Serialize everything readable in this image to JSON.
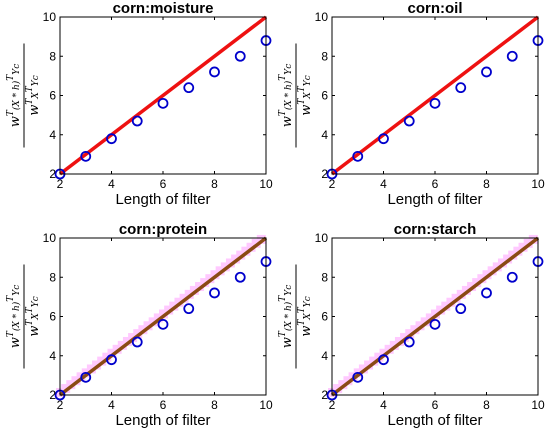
{
  "colors": {
    "marker": "#0000cc",
    "diagonal_red": "#ee1111",
    "diagonal_brown": "#8a4a14",
    "band_pink": "#ff88ff"
  },
  "ylabel_parts": {
    "numerator_lead": "w",
    "numerator_sup1": "T",
    "numerator_mid": "(X * h)",
    "numerator_sup2": "T",
    "numerator_tail": "Yc",
    "denominator_lead": "w",
    "denominator_sup1": "T",
    "denominator_mid": "X",
    "denominator_sup2": "T",
    "denominator_tail": "Yc"
  },
  "chart_data": [
    {
      "type": "scatter",
      "title": "corn:moisture",
      "xlabel": "Length of filter",
      "ylabel": "w^T(X*h)^T Yc / w^T X^T Yc",
      "xlim": [
        2,
        10
      ],
      "ylim": [
        2,
        10
      ],
      "x_ticks": [
        "2",
        "4",
        "6",
        "8",
        "10"
      ],
      "y_ticks": [
        "2",
        "4",
        "6",
        "8",
        "10"
      ],
      "grid": false,
      "diagonal": {
        "from": [
          2,
          2
        ],
        "to": [
          10,
          10
        ],
        "color": "red",
        "band": false
      },
      "x": [
        2,
        3,
        4,
        5,
        6,
        7,
        8,
        9,
        10
      ],
      "y": [
        2.0,
        2.9,
        3.8,
        4.7,
        5.6,
        6.4,
        7.2,
        8.0,
        8.8
      ]
    },
    {
      "type": "scatter",
      "title": "corn:oil",
      "xlabel": "Length of filter",
      "ylabel": "w^T(X*h)^T Yc / w^T X^T Yc",
      "xlim": [
        2,
        10
      ],
      "ylim": [
        2,
        10
      ],
      "x_ticks": [
        "2",
        "4",
        "6",
        "8",
        "10"
      ],
      "y_ticks": [
        "2",
        "4",
        "6",
        "8",
        "10"
      ],
      "grid": false,
      "diagonal": {
        "from": [
          2,
          2
        ],
        "to": [
          10,
          10
        ],
        "color": "red",
        "band": false
      },
      "x": [
        2,
        3,
        4,
        5,
        6,
        7,
        8,
        9,
        10
      ],
      "y": [
        2.0,
        2.9,
        3.8,
        4.7,
        5.6,
        6.4,
        7.2,
        8.0,
        8.8
      ]
    },
    {
      "type": "scatter",
      "title": "corn:protein",
      "xlabel": "Length of filter",
      "ylabel": "w^T(X*h)^T Yc / w^T X^T Yc",
      "xlim": [
        2,
        10
      ],
      "ylim": [
        2,
        10
      ],
      "x_ticks": [
        "2",
        "4",
        "6",
        "8",
        "10"
      ],
      "y_ticks": [
        "2",
        "4",
        "6",
        "8",
        "10"
      ],
      "grid": false,
      "diagonal": {
        "from": [
          2,
          2
        ],
        "to": [
          10,
          10
        ],
        "color": "brown",
        "band": true
      },
      "x": [
        2,
        3,
        4,
        5,
        6,
        7,
        8,
        9,
        10
      ],
      "y": [
        2.0,
        2.9,
        3.8,
        4.7,
        5.6,
        6.4,
        7.2,
        8.0,
        8.8
      ]
    },
    {
      "type": "scatter",
      "title": "corn:starch",
      "xlabel": "Length of filter",
      "ylabel": "w^T(X*h)^T Yc / w^T X^T Yc",
      "xlim": [
        2,
        10
      ],
      "ylim": [
        2,
        10
      ],
      "x_ticks": [
        "2",
        "4",
        "6",
        "8",
        "10"
      ],
      "y_ticks": [
        "2",
        "4",
        "6",
        "8",
        "10"
      ],
      "grid": false,
      "diagonal": {
        "from": [
          2,
          2
        ],
        "to": [
          10,
          10
        ],
        "color": "brown",
        "band": true
      },
      "x": [
        2,
        3,
        4,
        5,
        6,
        7,
        8,
        9,
        10
      ],
      "y": [
        2.0,
        2.9,
        3.8,
        4.7,
        5.6,
        6.4,
        7.2,
        8.0,
        8.8
      ]
    }
  ]
}
